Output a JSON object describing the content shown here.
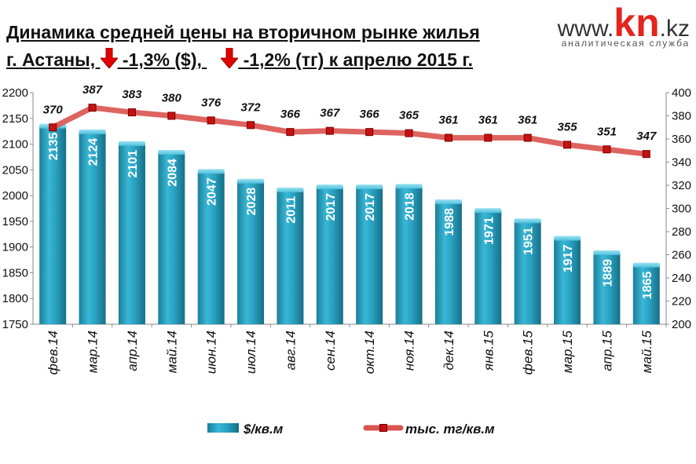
{
  "logo": {
    "prefix": "www.",
    "brand": "kn",
    "suffix": ".kz",
    "subtitle": "аналитическая служба",
    "brand_color": "#e2261c"
  },
  "title": {
    "line1": "Динамика средней  цены на вторичном рынке жилья",
    "line2_part1": "г. Астаны, ",
    "line2_part2": "-1,3% ($), ",
    "line2_part3": "-1,2% (тг) к апрелю 2015 г.",
    "arrow_icon": "down-arrow-icon",
    "arrow_color": "#e00000"
  },
  "chart_data": {
    "type": "bar+line",
    "categories": [
      "фев.14",
      "мар.14",
      "апр.14",
      "май.14",
      "июн.14",
      "июл.14",
      "авг.14",
      "сен.14",
      "окт.14",
      "ноя.14",
      "дек.14",
      "янв.15",
      "фев.15",
      "мар.15",
      "апр.15",
      "май.15"
    ],
    "series": [
      {
        "name": "$/кв.м",
        "type": "bar",
        "axis": "left",
        "color": "#2aa6c6",
        "values": [
          2135,
          2124,
          2101,
          2084,
          2047,
          2028,
          2011,
          2017,
          2017,
          2018,
          1988,
          1971,
          1951,
          1917,
          1889,
          1865
        ]
      },
      {
        "name": "тыс. тг/кв.м",
        "type": "line",
        "axis": "right",
        "color": "#d9534f",
        "values": [
          370,
          387,
          383,
          380,
          376,
          372,
          366,
          367,
          366,
          365,
          361,
          361,
          361,
          355,
          351,
          347
        ]
      }
    ],
    "y_left": {
      "min": 1750,
      "max": 2200,
      "step": 50,
      "ticks": [
        "1750",
        "1800",
        "1850",
        "1900",
        "1950",
        "2000",
        "2050",
        "2100",
        "2150",
        "2200"
      ]
    },
    "y_right": {
      "min": 200,
      "max": 400,
      "step": 20,
      "ticks": [
        "200",
        "220",
        "240",
        "260",
        "280",
        "300",
        "320",
        "340",
        "360",
        "380",
        "400"
      ]
    },
    "legend_position": "bottom",
    "grid": false
  }
}
